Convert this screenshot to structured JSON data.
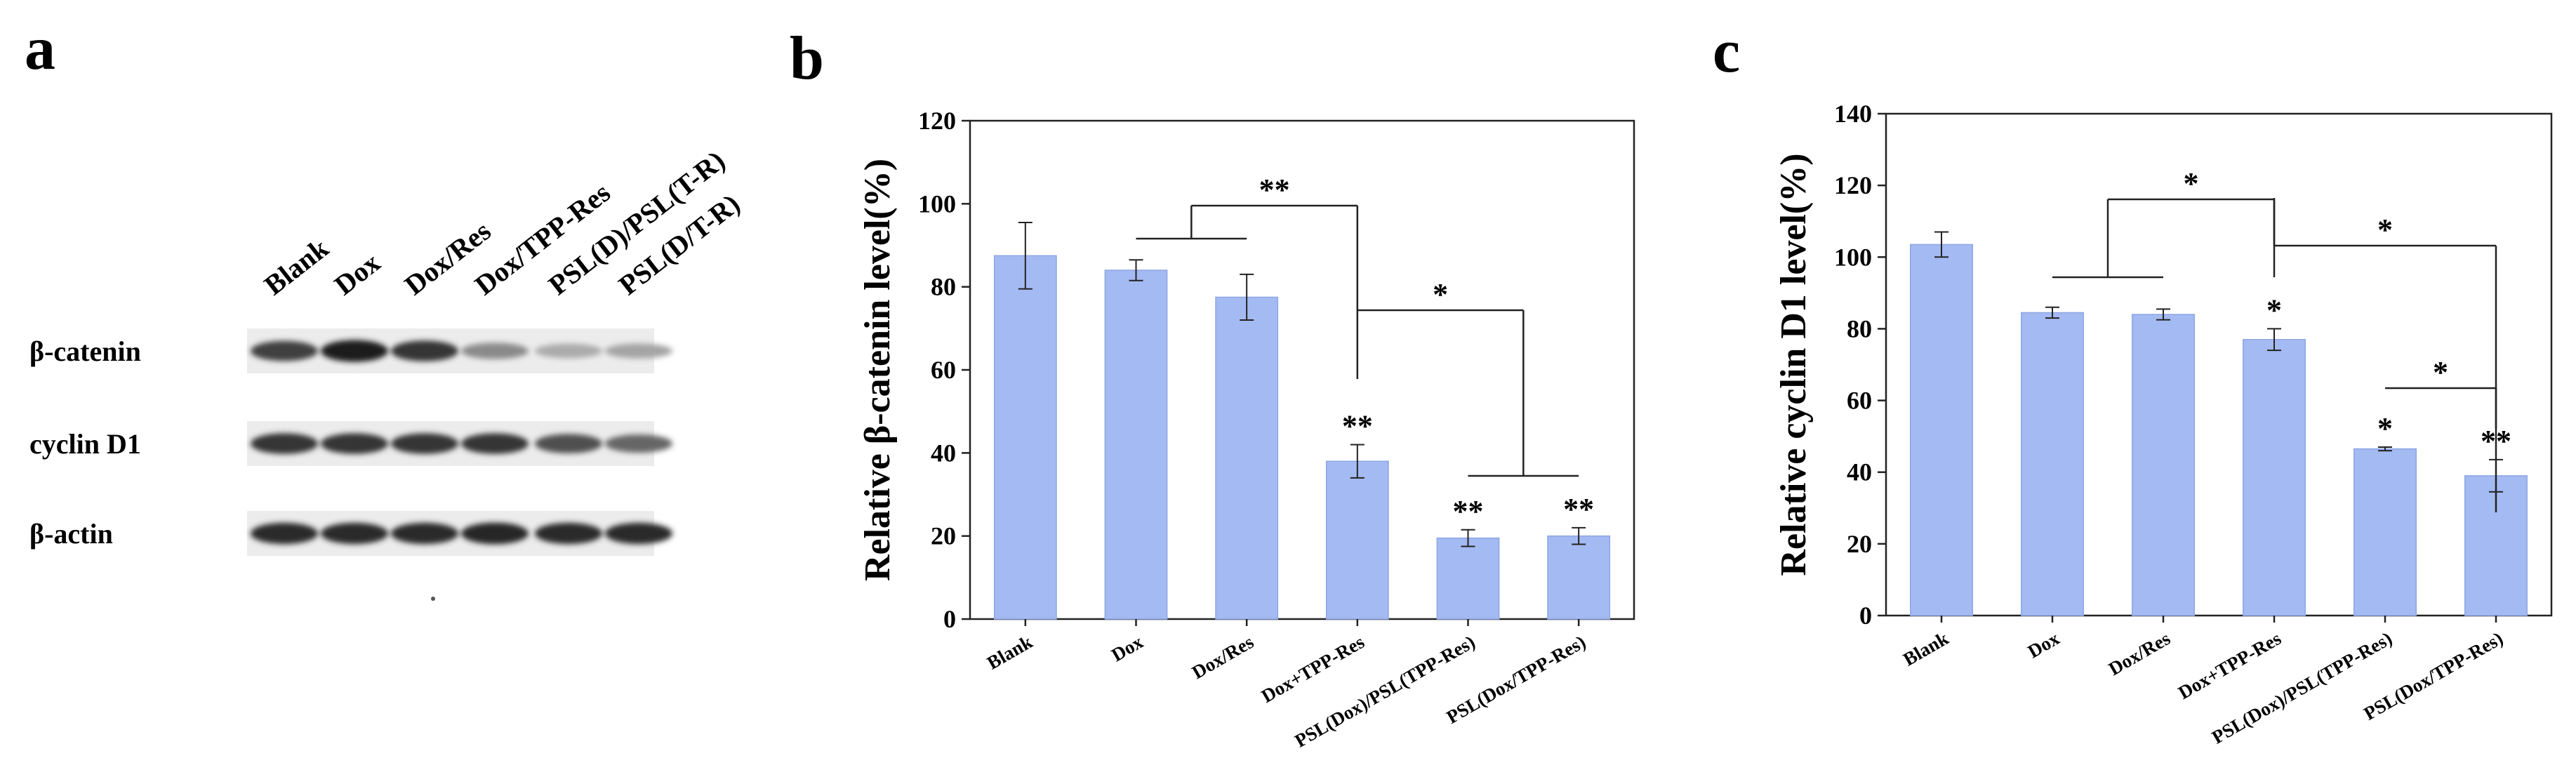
{
  "panels": {
    "a": {
      "letter": "a",
      "lane_labels": [
        "Blank",
        "Dox",
        "Dox/Res",
        "Dox/TPP-Res",
        "PSL(D)/PSL(T-R)",
        "PSL(D/T-R)"
      ],
      "band_labels": [
        "β-catenin",
        "cyclin D1",
        "β-actin"
      ],
      "band_intensity": [
        [
          0.8,
          0.95,
          0.85,
          0.45,
          0.3,
          0.33
        ],
        [
          0.85,
          0.85,
          0.85,
          0.85,
          0.72,
          0.62
        ],
        [
          0.9,
          0.9,
          0.9,
          0.92,
          0.9,
          0.9
        ]
      ]
    },
    "b": {
      "letter": "b"
    },
    "c": {
      "letter": "c"
    }
  },
  "chart_data": [
    {
      "type": "bar",
      "panel": "b",
      "title": "",
      "xlabel": "",
      "ylabel": "Relative β-catenin level(%)",
      "ylim": [
        0,
        120
      ],
      "yticks": [
        0,
        20,
        40,
        60,
        80,
        100,
        120
      ],
      "categories": [
        "Blank",
        "Dox",
        "Dox/Res",
        "Dox+TPP-Res",
        "PSL(Dox)/PSL(TPP-Res)",
        "PSL(Dox/TPP-Res)"
      ],
      "values": [
        87.5,
        84.0,
        77.5,
        38.0,
        19.5,
        20.0
      ],
      "errors": [
        8.0,
        2.5,
        5.5,
        4.0,
        2.0,
        2.0
      ],
      "bar_labels": [
        "",
        "",
        "",
        "**",
        "**",
        "**"
      ],
      "comparisons": [
        {
          "from": [
            1,
            2
          ],
          "to": [
            3
          ],
          "label": "**"
        },
        {
          "from": [
            4,
            5
          ],
          "to": [
            3
          ],
          "label": "*"
        }
      ],
      "grid": false,
      "bar_color": "#a4baf2"
    },
    {
      "type": "bar",
      "panel": "c",
      "title": "",
      "xlabel": "",
      "ylabel": "Relative cyclin D1 level(%)",
      "ylim": [
        0,
        140
      ],
      "yticks": [
        0,
        20,
        40,
        60,
        80,
        100,
        120,
        140
      ],
      "categories": [
        "Blank",
        "Dox",
        "Dox/Res",
        "Dox+TPP-Res",
        "PSL(Dox)/PSL(TPP-Res)",
        "PSL(Dox/TPP-Res)"
      ],
      "values": [
        103.5,
        84.5,
        84.0,
        77.0,
        46.5,
        39.0
      ],
      "errors": [
        3.5,
        1.5,
        1.5,
        3.0,
        0.5,
        4.5
      ],
      "bar_labels": [
        "",
        "",
        "",
        "*",
        "*",
        "**"
      ],
      "comparisons": [
        {
          "from": [
            1,
            2
          ],
          "to": [
            3
          ],
          "label": "*"
        },
        {
          "from": [
            3
          ],
          "to": [
            5
          ],
          "label": "*"
        },
        {
          "from": [
            4
          ],
          "to": [
            5
          ],
          "label": "*"
        }
      ],
      "grid": false,
      "bar_color": "#a4baf2"
    }
  ]
}
